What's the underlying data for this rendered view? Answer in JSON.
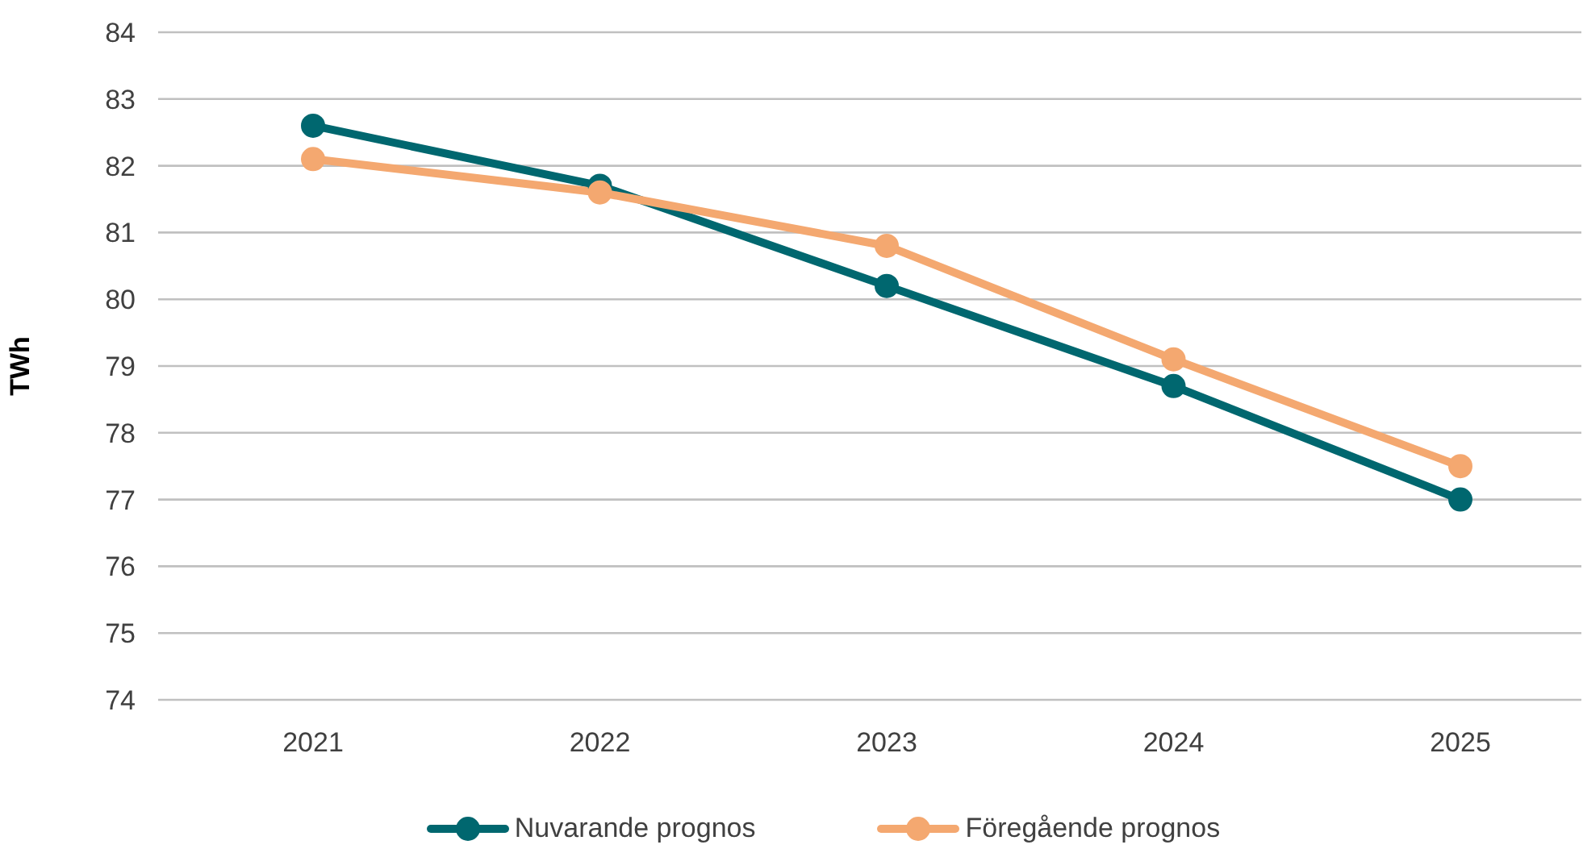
{
  "chart_data": {
    "type": "line",
    "ylabel": "TWh",
    "categories": [
      "2021",
      "2022",
      "2023",
      "2024",
      "2025"
    ],
    "series": [
      {
        "name": "Nuvarande prognos",
        "color": "#00676f",
        "values": [
          82.6,
          81.7,
          80.2,
          78.7,
          77.0
        ]
      },
      {
        "name": "Föregående prognos",
        "color": "#f4a870",
        "values": [
          82.1,
          81.6,
          80.8,
          79.1,
          77.5
        ]
      }
    ],
    "ylim": [
      74,
      84
    ],
    "yticks": [
      74,
      75,
      76,
      77,
      78,
      79,
      80,
      81,
      82,
      83,
      84
    ],
    "grid": "y",
    "legend": "bottom",
    "marker": "circle",
    "line_style": "solid"
  }
}
